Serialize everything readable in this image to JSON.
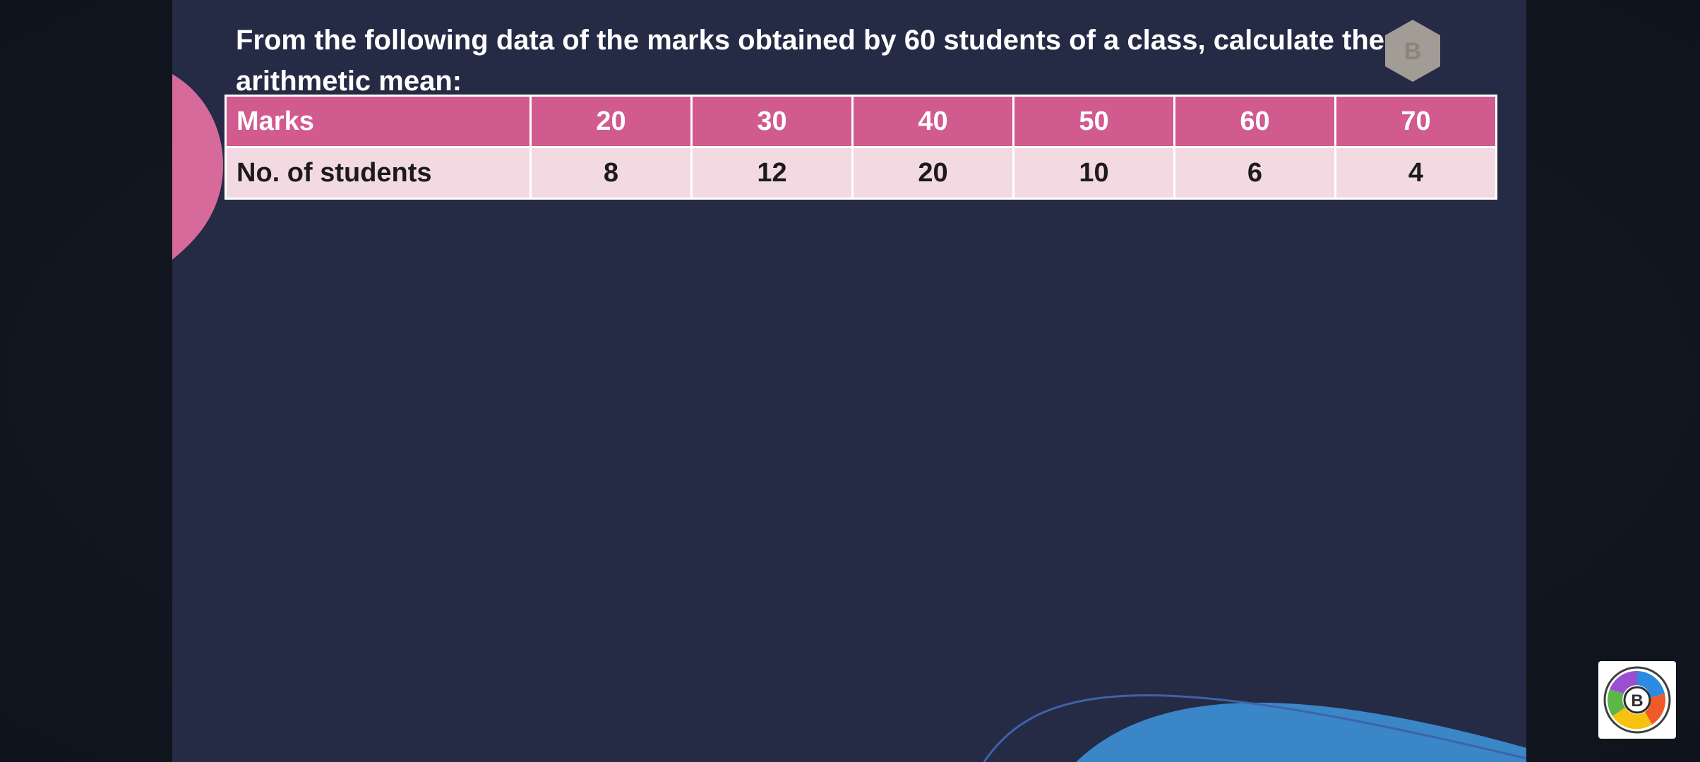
{
  "question": {
    "text": "From the following data of the marks obtained by 60 students of a class, calculate the arithmetic mean:"
  },
  "table": {
    "header": [
      "Marks",
      "20",
      "30",
      "40",
      "50",
      "60",
      "70"
    ],
    "row": [
      "No. of students",
      "8",
      "12",
      "20",
      "10",
      "6",
      "4"
    ]
  },
  "badge": {
    "letter": "B"
  },
  "colors": {
    "slide_background": "#252a45",
    "header_fill": "#d15a8e",
    "row_fill": "#f2d9e2",
    "accent_blue": "#3a86c6",
    "accent_pink": "#d66a9b"
  }
}
